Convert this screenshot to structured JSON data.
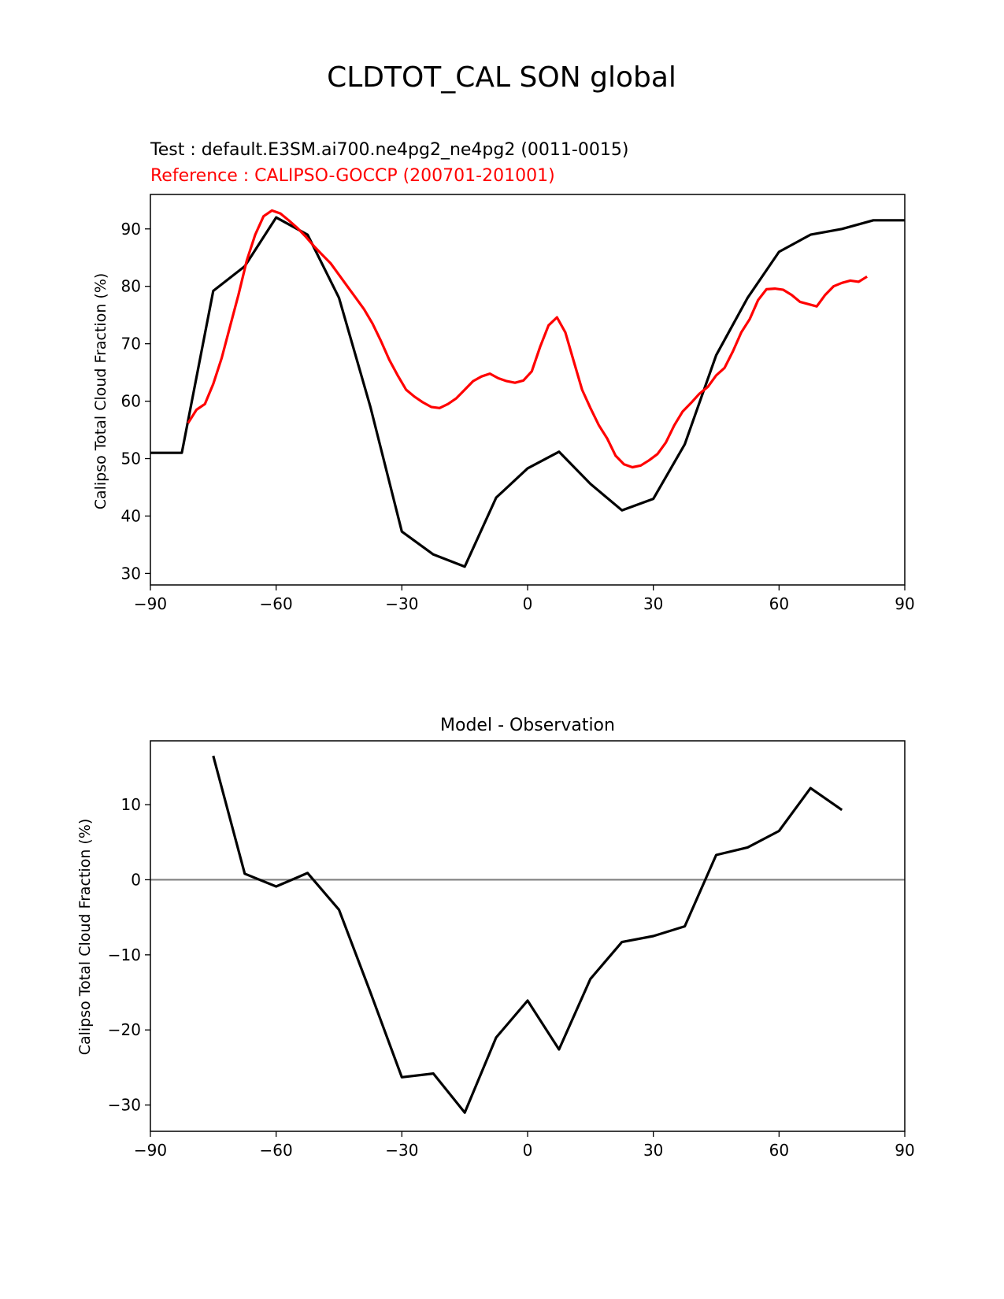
{
  "figure": {
    "title": "CLDTOT_CAL SON global"
  },
  "chart_data": [
    {
      "type": "line",
      "test_label": "Test : default.E3SM.ai700.ne4pg2_ne4pg2 (0011-0015)",
      "reference_label": "Reference : CALIPSO-GOCCP (200701-201001)",
      "xlabel": "",
      "ylabel": "Calipso Total Cloud Fraction (%)",
      "xlim": [
        -90,
        90
      ],
      "ylim": [
        28,
        96
      ],
      "xticks": [
        -90,
        -60,
        -30,
        0,
        30,
        60,
        90
      ],
      "xtick_labels": [
        "−90",
        "−60",
        "−30",
        "0",
        "30",
        "60",
        "90"
      ],
      "yticks": [
        30,
        40,
        50,
        60,
        70,
        80,
        90
      ],
      "ytick_labels": [
        "30",
        "40",
        "50",
        "60",
        "70",
        "80",
        "90"
      ],
      "series": [
        {
          "name": "Test",
          "color": "#000000",
          "x": [
            -90,
            -82.5,
            -75,
            -67.5,
            -60,
            -52.5,
            -45,
            -37.5,
            -30,
            -22.5,
            -15,
            -7.5,
            0,
            7.5,
            15,
            22.5,
            30,
            37.5,
            45,
            52.5,
            60,
            67.5,
            75,
            82.5,
            90
          ],
          "y": [
            51,
            51,
            79.2,
            83.5,
            92,
            89,
            78,
            59,
            37.3,
            33.3,
            31.2,
            43.2,
            48.3,
            51.2,
            45.6,
            41,
            43,
            52.5,
            68,
            78,
            86,
            89,
            90,
            91.5,
            91.5
          ]
        },
        {
          "name": "Reference",
          "color": "#ff0000",
          "x": [
            -81,
            -79,
            -77,
            -75,
            -73,
            -71,
            -69,
            -67,
            -65,
            -63,
            -61,
            -59,
            -57,
            -55,
            -53,
            -51,
            -49,
            -47,
            -45,
            -43,
            -41,
            -39,
            -37,
            -35,
            -33,
            -31,
            -29,
            -27,
            -25,
            -23,
            -21,
            -19,
            -17,
            -15,
            -13,
            -11,
            -9,
            -7,
            -5,
            -3,
            -1,
            1,
            3,
            5,
            7,
            9,
            11,
            13,
            15,
            17,
            19,
            21,
            23,
            25,
            27,
            29,
            31,
            33,
            35,
            37,
            39,
            41,
            43,
            45,
            47,
            49,
            51,
            53,
            55,
            57,
            59,
            61,
            63,
            65,
            67,
            69,
            71,
            73,
            75,
            77,
            79,
            81
          ],
          "y": [
            56.2,
            58.5,
            59.5,
            63,
            67.5,
            73,
            78.5,
            84.5,
            89,
            92.2,
            93.2,
            92.7,
            91.5,
            90.2,
            88.7,
            87,
            85.5,
            84,
            82,
            80,
            78,
            76,
            73.5,
            70.5,
            67.2,
            64.5,
            62,
            60.8,
            59.8,
            59,
            58.8,
            59.5,
            60.5,
            62,
            63.5,
            64.3,
            64.8,
            64,
            63.5,
            63.2,
            63.6,
            65.2,
            69.5,
            73.2,
            74.6,
            72,
            67,
            62,
            58.8,
            55.8,
            53.5,
            50.5,
            49,
            48.5,
            48.8,
            49.7,
            50.8,
            52.8,
            55.8,
            58.2,
            59.7,
            61.3,
            62.5,
            64.5,
            65.8,
            68.7,
            72,
            74.3,
            77.6,
            79.5,
            79.6,
            79.4,
            78.5,
            77.3,
            76.9,
            76.5,
            78.5,
            80,
            80.6,
            81,
            80.8,
            81.7
          ]
        }
      ]
    },
    {
      "type": "line",
      "title": "Model - Observation",
      "xlabel": "",
      "ylabel": "Calipso Total Cloud Fraction (%)",
      "xlim": [
        -90,
        90
      ],
      "ylim": [
        -33.5,
        18.5
      ],
      "xticks": [
        -90,
        -60,
        -30,
        0,
        30,
        60,
        90
      ],
      "xtick_labels": [
        "−90",
        "−60",
        "−30",
        "0",
        "30",
        "60",
        "90"
      ],
      "yticks": [
        -30,
        -20,
        -10,
        0,
        10
      ],
      "ytick_labels": [
        "−30",
        "−20",
        "−10",
        "0",
        "10"
      ],
      "zero_line_color": "#808080",
      "series": [
        {
          "name": "Model - Observation",
          "color": "#000000",
          "x": [
            -75,
            -67.5,
            -60,
            -52.5,
            -45,
            -37.5,
            -30,
            -22.5,
            -15,
            -7.5,
            0,
            7.5,
            15,
            22.5,
            30,
            37.5,
            45,
            52.5,
            60,
            67.5,
            75
          ],
          "y": [
            16.5,
            0.8,
            -0.9,
            0.9,
            -4,
            -15,
            -26.3,
            -25.8,
            -31,
            -21,
            -16.1,
            -22.6,
            -13.2,
            -8.3,
            -7.5,
            -6.2,
            3.3,
            4.3,
            6.5,
            12.2,
            9.3
          ]
        }
      ]
    }
  ]
}
